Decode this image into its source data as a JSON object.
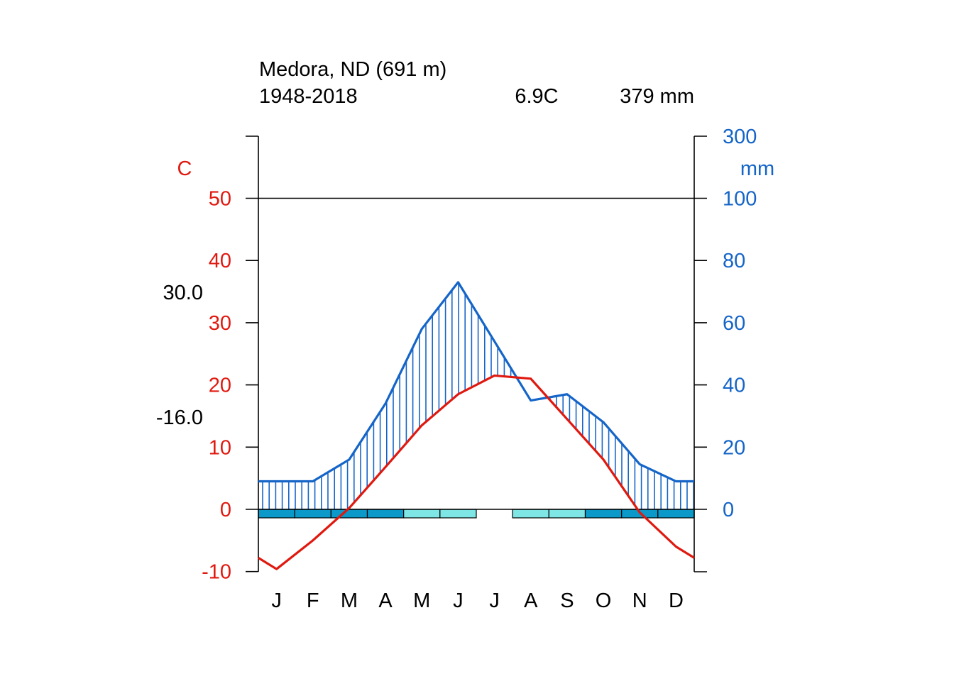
{
  "header": {
    "station": "Medora, ND (691 m)",
    "period": "1948-2018",
    "mean_temp": "6.9C",
    "annual_precip": "379 mm"
  },
  "side_labels": {
    "max_temp_label": "30.0",
    "min_temp_label": "-16.0"
  },
  "colors": {
    "temperature": "#e0190f",
    "precipitation": "#1565c8",
    "frost_certain": "#0a99c8",
    "frost_probable": "#7fe6e6",
    "axis": "#000000"
  },
  "chart_data": {
    "type": "line",
    "title": "Medora, ND (691 m)",
    "categories": [
      "J",
      "F",
      "M",
      "A",
      "M",
      "J",
      "J",
      "A",
      "S",
      "O",
      "N",
      "D"
    ],
    "left_axis": {
      "unit_label": "C",
      "ticks": [
        "-10",
        "0",
        "10",
        "20",
        "30",
        "40",
        "50"
      ],
      "range": [
        -10,
        60
      ]
    },
    "right_axis": {
      "unit_label": "mm",
      "ticks": [
        "0",
        "20",
        "40",
        "60",
        "80",
        "100",
        "300"
      ],
      "range_below_100": [
        0,
        100
      ],
      "range_above_100": [
        100,
        300
      ]
    },
    "series": [
      {
        "key": "temperature",
        "axis": "left",
        "x": [
          0,
          0.5,
          1.5,
          2.5,
          3.5,
          4.5,
          5.5,
          6.5,
          7.5,
          8.5,
          9.5,
          10.5,
          11.5,
          12
        ],
        "values": [
          -7.8,
          -9.6,
          -5.0,
          0.2,
          6.8,
          13.5,
          18.5,
          21.5,
          21.0,
          14.5,
          8.0,
          -0.5,
          -6.0,
          -7.8
        ]
      },
      {
        "key": "precipitation",
        "axis": "right",
        "x": [
          0,
          0.5,
          1.5,
          2.5,
          3.5,
          4.5,
          5.5,
          6.5,
          7.5,
          8.5,
          9.5,
          10.5,
          11.5,
          12
        ],
        "values": [
          9,
          9,
          9,
          16,
          34,
          58,
          73,
          54,
          35,
          37,
          28,
          14.5,
          9,
          9
        ]
      }
    ],
    "frost_months": [
      "certain",
      "certain",
      "certain",
      "certain",
      "probable",
      "probable",
      "none",
      "probable",
      "probable",
      "certain",
      "certain",
      "certain"
    ]
  }
}
